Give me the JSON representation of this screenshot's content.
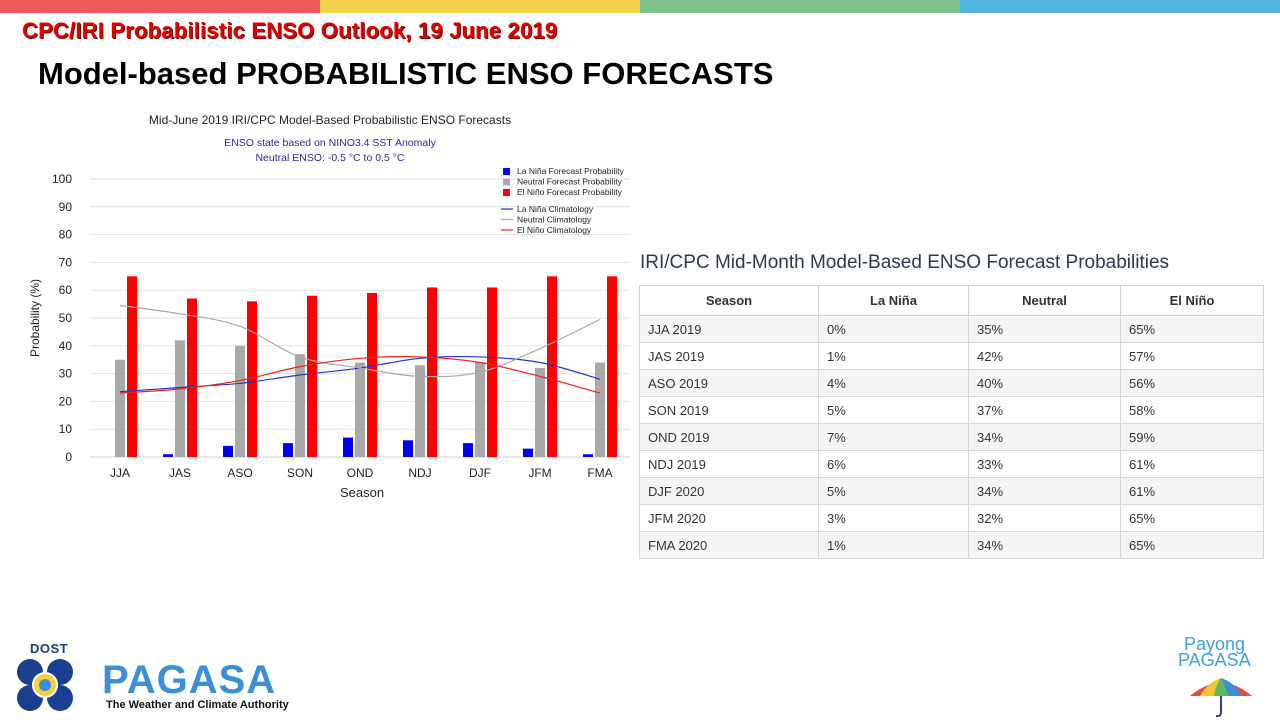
{
  "slide": {
    "top_title": "CPC/IRI Probabilistic ENSO Outlook, 19 June 2019",
    "heading": "Model-based PROBABILISTIC ENSO FORECASTS",
    "band_colors": [
      "#ef5a5a",
      "#f3d24b",
      "#7cc38e",
      "#53b3e1"
    ]
  },
  "chart_data": {
    "type": "bar",
    "title": "Mid-June 2019 IRI/CPC Model-Based Probabilistic ENSO Forecasts",
    "subtitle1": "ENSO state based on NINO3.4 SST Anomaly",
    "subtitle2": "Neutral ENSO: -0.5 °C to 0.5 °C",
    "xlabel": "Season",
    "ylabel": "Probability (%)",
    "ylim": [
      0,
      100
    ],
    "yticks": [
      0,
      10,
      20,
      30,
      40,
      50,
      60,
      70,
      80,
      90,
      100
    ],
    "grid": true,
    "legend_position": "top-right",
    "categories": [
      "JJA",
      "JAS",
      "ASO",
      "SON",
      "OND",
      "NDJ",
      "DJF",
      "JFM",
      "FMA"
    ],
    "series": [
      {
        "name": "La Niña Forecast Probability",
        "color": "#0000ff",
        "values": [
          0,
          1,
          4,
          5,
          7,
          6,
          5,
          3,
          1
        ]
      },
      {
        "name": "Neutral Forecast Probability",
        "color": "#a9a9a9",
        "values": [
          35,
          42,
          40,
          37,
          34,
          33,
          34,
          32,
          34
        ]
      },
      {
        "name": "El Niño Forecast Probability",
        "color": "#ff0000",
        "values": [
          65,
          57,
          56,
          58,
          59,
          61,
          61,
          65,
          65
        ]
      }
    ],
    "climatology": [
      {
        "name": "La Niña Climatology",
        "color": "#2233cc",
        "values": [
          23.5,
          25,
          26.5,
          29.5,
          32,
          35.5,
          36,
          34,
          28
        ]
      },
      {
        "name": "Neutral Climatology",
        "color": "#a9a9a9",
        "values": [
          54.5,
          51.5,
          47,
          36,
          32,
          29,
          30.5,
          39,
          49.5
        ]
      },
      {
        "name": "El Niño Climatology",
        "color": "#ee2222",
        "values": [
          23,
          24.5,
          27.5,
          32.5,
          35.5,
          36,
          34,
          29,
          23
        ]
      }
    ]
  },
  "table": {
    "title": "IRI/CPC Mid-Month Model-Based ENSO Forecast Probabilities",
    "headers": [
      "Season",
      "La Niña",
      "Neutral",
      "El Niño"
    ],
    "rows": [
      [
        "JJA 2019",
        "0%",
        "35%",
        "65%"
      ],
      [
        "JAS 2019",
        "1%",
        "42%",
        "57%"
      ],
      [
        "ASO 2019",
        "4%",
        "40%",
        "56%"
      ],
      [
        "SON 2019",
        "5%",
        "37%",
        "58%"
      ],
      [
        "OND 2019",
        "7%",
        "34%",
        "59%"
      ],
      [
        "NDJ 2019",
        "6%",
        "33%",
        "61%"
      ],
      [
        "DJF 2020",
        "5%",
        "34%",
        "61%"
      ],
      [
        "JFM 2020",
        "3%",
        "32%",
        "65%"
      ],
      [
        "FMA 2020",
        "1%",
        "34%",
        "65%"
      ]
    ]
  },
  "footer": {
    "dost": "DOST",
    "pagasa": "PAGASA",
    "tagline": "The Weather and Climate Authority",
    "payong_line1": "Payong",
    "payong_line2": "PAGASA"
  }
}
